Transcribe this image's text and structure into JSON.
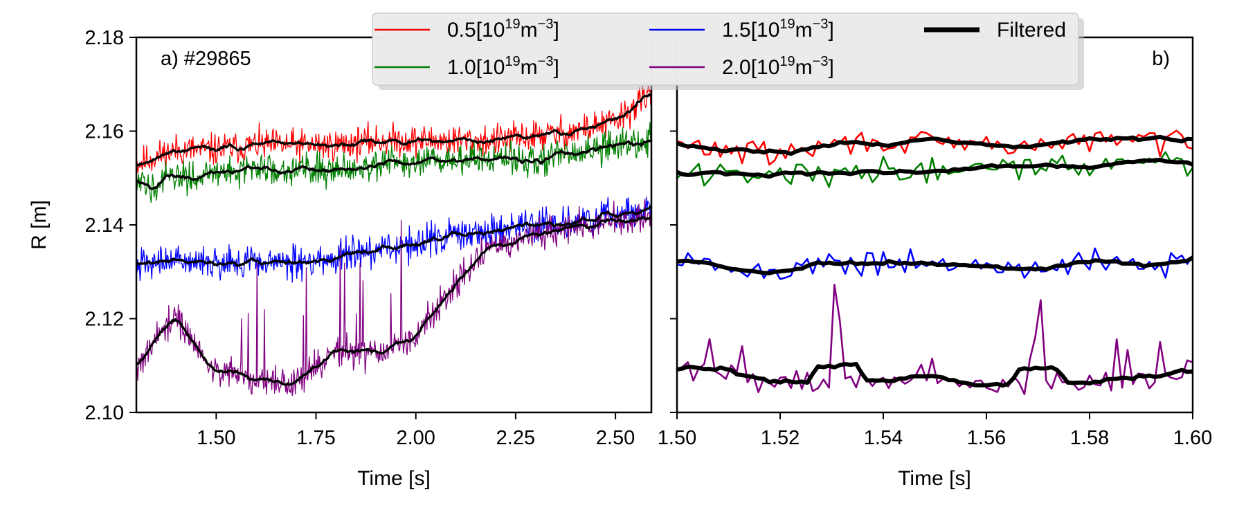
{
  "chart_data": [
    {
      "type": "line",
      "panel_label": "a) #29865",
      "xlabel": "Time [s]",
      "ylabel": "R [m]",
      "xlim": [
        1.3,
        2.59
      ],
      "ylim": [
        2.1,
        2.18
      ],
      "x_ticks": [
        "1.50",
        "1.75",
        "2.00",
        "2.25",
        "2.50"
      ],
      "y_ticks": [
        "2.10",
        "2.12",
        "2.14",
        "2.16",
        "2.18"
      ],
      "grid": false,
      "series": [
        {
          "name": "0.5[10^19 m^-3]",
          "color": "#ff0000",
          "x": [
            1.3,
            1.4,
            1.5,
            1.6,
            1.7,
            1.8,
            1.9,
            2.0,
            2.1,
            2.2,
            2.3,
            2.4,
            2.5,
            2.59
          ],
          "y": [
            2.153,
            2.156,
            2.156,
            2.157,
            2.157,
            2.157,
            2.158,
            2.158,
            2.158,
            2.158,
            2.159,
            2.16,
            2.162,
            2.168
          ]
        },
        {
          "name": "1.0[10^19 m^-3]",
          "color": "#008000",
          "x": [
            1.3,
            1.4,
            1.5,
            1.6,
            1.7,
            1.8,
            1.9,
            2.0,
            2.1,
            2.2,
            2.3,
            2.4,
            2.5,
            2.59
          ],
          "y": [
            2.148,
            2.15,
            2.151,
            2.152,
            2.152,
            2.152,
            2.153,
            2.153,
            2.154,
            2.154,
            2.154,
            2.155,
            2.157,
            2.158
          ]
        },
        {
          "name": "1.5[10^19 m^-3]",
          "color": "#0000ff",
          "x": [
            1.3,
            1.4,
            1.5,
            1.6,
            1.7,
            1.8,
            1.9,
            2.0,
            2.1,
            2.2,
            2.3,
            2.4,
            2.5,
            2.59
          ],
          "y": [
            2.131,
            2.133,
            2.132,
            2.132,
            2.132,
            2.133,
            2.135,
            2.136,
            2.138,
            2.139,
            2.14,
            2.141,
            2.142,
            2.143
          ]
        },
        {
          "name": "2.0[10^19 m^-3]",
          "color": "#800080",
          "x": [
            1.3,
            1.35,
            1.4,
            1.45,
            1.5,
            1.6,
            1.7,
            1.75,
            1.8,
            1.9,
            2.0,
            2.05,
            2.1,
            2.15,
            2.2,
            2.3,
            2.4,
            2.5,
            2.59
          ],
          "y": [
            2.108,
            2.116,
            2.12,
            2.114,
            2.109,
            2.107,
            2.106,
            2.11,
            2.113,
            2.112,
            2.116,
            2.122,
            2.128,
            2.132,
            2.135,
            2.138,
            2.14,
            2.141,
            2.142
          ]
        }
      ]
    },
    {
      "type": "line",
      "panel_label": "b)",
      "xlabel": "Time [s]",
      "xlim": [
        1.5,
        1.6
      ],
      "ylim": [
        2.1,
        2.18
      ],
      "x_ticks": [
        "1.50",
        "1.52",
        "1.54",
        "1.56",
        "1.58",
        "1.60"
      ],
      "grid": false,
      "series": [
        {
          "name": "0.5[10^19 m^-3]",
          "color": "#ff0000",
          "x": [
            1.5,
            1.51,
            1.52,
            1.53,
            1.54,
            1.55,
            1.56,
            1.57,
            1.58,
            1.59,
            1.6
          ],
          "y": [
            2.157,
            2.156,
            2.155,
            2.157,
            2.158,
            2.157,
            2.157,
            2.157,
            2.158,
            2.158,
            2.158
          ]
        },
        {
          "name": "1.0[10^19 m^-3]",
          "color": "#008000",
          "x": [
            1.5,
            1.51,
            1.52,
            1.53,
            1.54,
            1.55,
            1.56,
            1.57,
            1.58,
            1.59,
            1.6
          ],
          "y": [
            2.151,
            2.151,
            2.151,
            2.151,
            2.152,
            2.152,
            2.152,
            2.152,
            2.153,
            2.153,
            2.153
          ]
        },
        {
          "name": "1.5[10^19 m^-3]",
          "color": "#0000ff",
          "x": [
            1.5,
            1.51,
            1.515,
            1.52,
            1.53,
            1.54,
            1.55,
            1.56,
            1.57,
            1.58,
            1.585,
            1.59,
            1.6
          ],
          "y": [
            2.132,
            2.131,
            2.129,
            2.13,
            2.132,
            2.132,
            2.132,
            2.131,
            2.131,
            2.133,
            2.133,
            2.131,
            2.133
          ]
        },
        {
          "name": "2.0[10^19 m^-3]",
          "color": "#800080",
          "x": [
            1.5,
            1.51,
            1.52,
            1.53,
            1.531,
            1.532,
            1.54,
            1.55,
            1.56,
            1.569,
            1.57,
            1.571,
            1.58,
            1.59,
            1.6
          ],
          "y": [
            2.109,
            2.108,
            2.106,
            2.106,
            2.134,
            2.107,
            2.107,
            2.107,
            2.106,
            2.106,
            2.13,
            2.106,
            2.106,
            2.106,
            2.11
          ]
        }
      ]
    }
  ],
  "legend": {
    "entries": [
      {
        "base": "0.5[10",
        "sup1": "19",
        "mid": "m",
        "sup2": "−3",
        "end": "]",
        "color": "#ff0000"
      },
      {
        "base": "1.0[10",
        "sup1": "19",
        "mid": "m",
        "sup2": "−3",
        "end": "]",
        "color": "#008000"
      },
      {
        "base": "1.5[10",
        "sup1": "19",
        "mid": "m",
        "sup2": "−3",
        "end": "]",
        "color": "#0000ff"
      },
      {
        "base": "2.0[10",
        "sup1": "19",
        "mid": "m",
        "sup2": "−3",
        "end": "]",
        "color": "#800080"
      }
    ],
    "filtered_label": "Filtered",
    "filtered_color": "#000000"
  }
}
